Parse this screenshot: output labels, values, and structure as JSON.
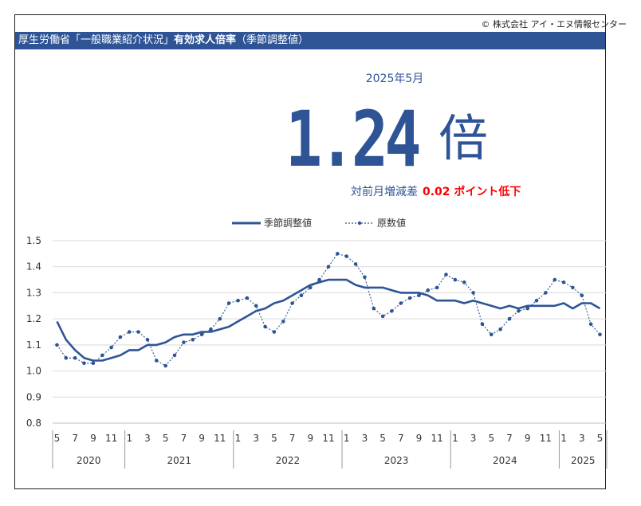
{
  "copyright": "© 株式会社 アイ・エヌ情報センター",
  "header": {
    "title_prefix": "厚生労働省「一般職業紹介状況」",
    "title_bold": "有効求人倍率",
    "title_suffix": "（季節調整値）"
  },
  "headline": {
    "period": "2025年5月",
    "value": "1.24",
    "unit": "倍",
    "change_label": "対前月増減差",
    "change_value": "0.02 ポイント低下"
  },
  "colors": {
    "accent": "#2e5496",
    "alert": "#ff0000"
  },
  "chart_data": {
    "type": "line",
    "title": "",
    "xlabel": "",
    "ylabel": "",
    "ylim": [
      0.8,
      1.5
    ],
    "yticks": [
      "0.8",
      "0.9",
      "1.0",
      "1.1",
      "1.2",
      "1.3",
      "1.4",
      "1.5"
    ],
    "grid": true,
    "legend_position": "top-center",
    "months": [
      5,
      6,
      7,
      8,
      9,
      10,
      11,
      12,
      1,
      2,
      3,
      4,
      5,
      6,
      7,
      8,
      9,
      10,
      11,
      12,
      1,
      2,
      3,
      4,
      5,
      6,
      7,
      8,
      9,
      10,
      11,
      12,
      1,
      2,
      3,
      4,
      5,
      6,
      7,
      8,
      9,
      10,
      11,
      12,
      1,
      2,
      3,
      4,
      5,
      6,
      7,
      8,
      9,
      10,
      11,
      12,
      1,
      2,
      3,
      4,
      5
    ],
    "month_labels": [
      "5",
      "7",
      "9",
      "11",
      "1",
      "3",
      "5",
      "7",
      "9",
      "11",
      "1",
      "3",
      "5",
      "7",
      "9",
      "11",
      "1",
      "3",
      "5",
      "7",
      "9",
      "11",
      "1",
      "3",
      "5",
      "7",
      "9",
      "11",
      "1",
      "3",
      "5"
    ],
    "year_groups": [
      {
        "label": "2020",
        "months": 8
      },
      {
        "label": "2021",
        "months": 12
      },
      {
        "label": "2022",
        "months": 12
      },
      {
        "label": "2023",
        "months": 12
      },
      {
        "label": "2024",
        "months": 12
      },
      {
        "label": "2025",
        "months": 5
      }
    ],
    "series": [
      {
        "name": "季節調整値",
        "style": "solid",
        "values": [
          1.19,
          1.12,
          1.08,
          1.05,
          1.04,
          1.04,
          1.05,
          1.06,
          1.08,
          1.08,
          1.1,
          1.1,
          1.11,
          1.13,
          1.14,
          1.14,
          1.15,
          1.15,
          1.16,
          1.17,
          1.19,
          1.21,
          1.23,
          1.24,
          1.26,
          1.27,
          1.29,
          1.31,
          1.33,
          1.34,
          1.35,
          1.35,
          1.35,
          1.33,
          1.32,
          1.32,
          1.32,
          1.31,
          1.3,
          1.3,
          1.3,
          1.29,
          1.27,
          1.27,
          1.27,
          1.26,
          1.27,
          1.26,
          1.25,
          1.24,
          1.25,
          1.24,
          1.25,
          1.25,
          1.25,
          1.25,
          1.26,
          1.24,
          1.26,
          1.26,
          1.24
        ]
      },
      {
        "name": "原数値",
        "style": "dotted",
        "values": [
          1.1,
          1.05,
          1.05,
          1.03,
          1.03,
          1.06,
          1.09,
          1.13,
          1.15,
          1.15,
          1.12,
          1.04,
          1.02,
          1.06,
          1.11,
          1.12,
          1.14,
          1.16,
          1.2,
          1.26,
          1.27,
          1.28,
          1.25,
          1.17,
          1.15,
          1.19,
          1.26,
          1.29,
          1.32,
          1.35,
          1.4,
          1.45,
          1.44,
          1.41,
          1.36,
          1.24,
          1.21,
          1.23,
          1.26,
          1.28,
          1.29,
          1.31,
          1.32,
          1.37,
          1.35,
          1.34,
          1.3,
          1.18,
          1.14,
          1.16,
          1.2,
          1.23,
          1.24,
          1.27,
          1.3,
          1.35,
          1.34,
          1.32,
          1.29,
          1.18,
          1.14
        ]
      }
    ]
  }
}
